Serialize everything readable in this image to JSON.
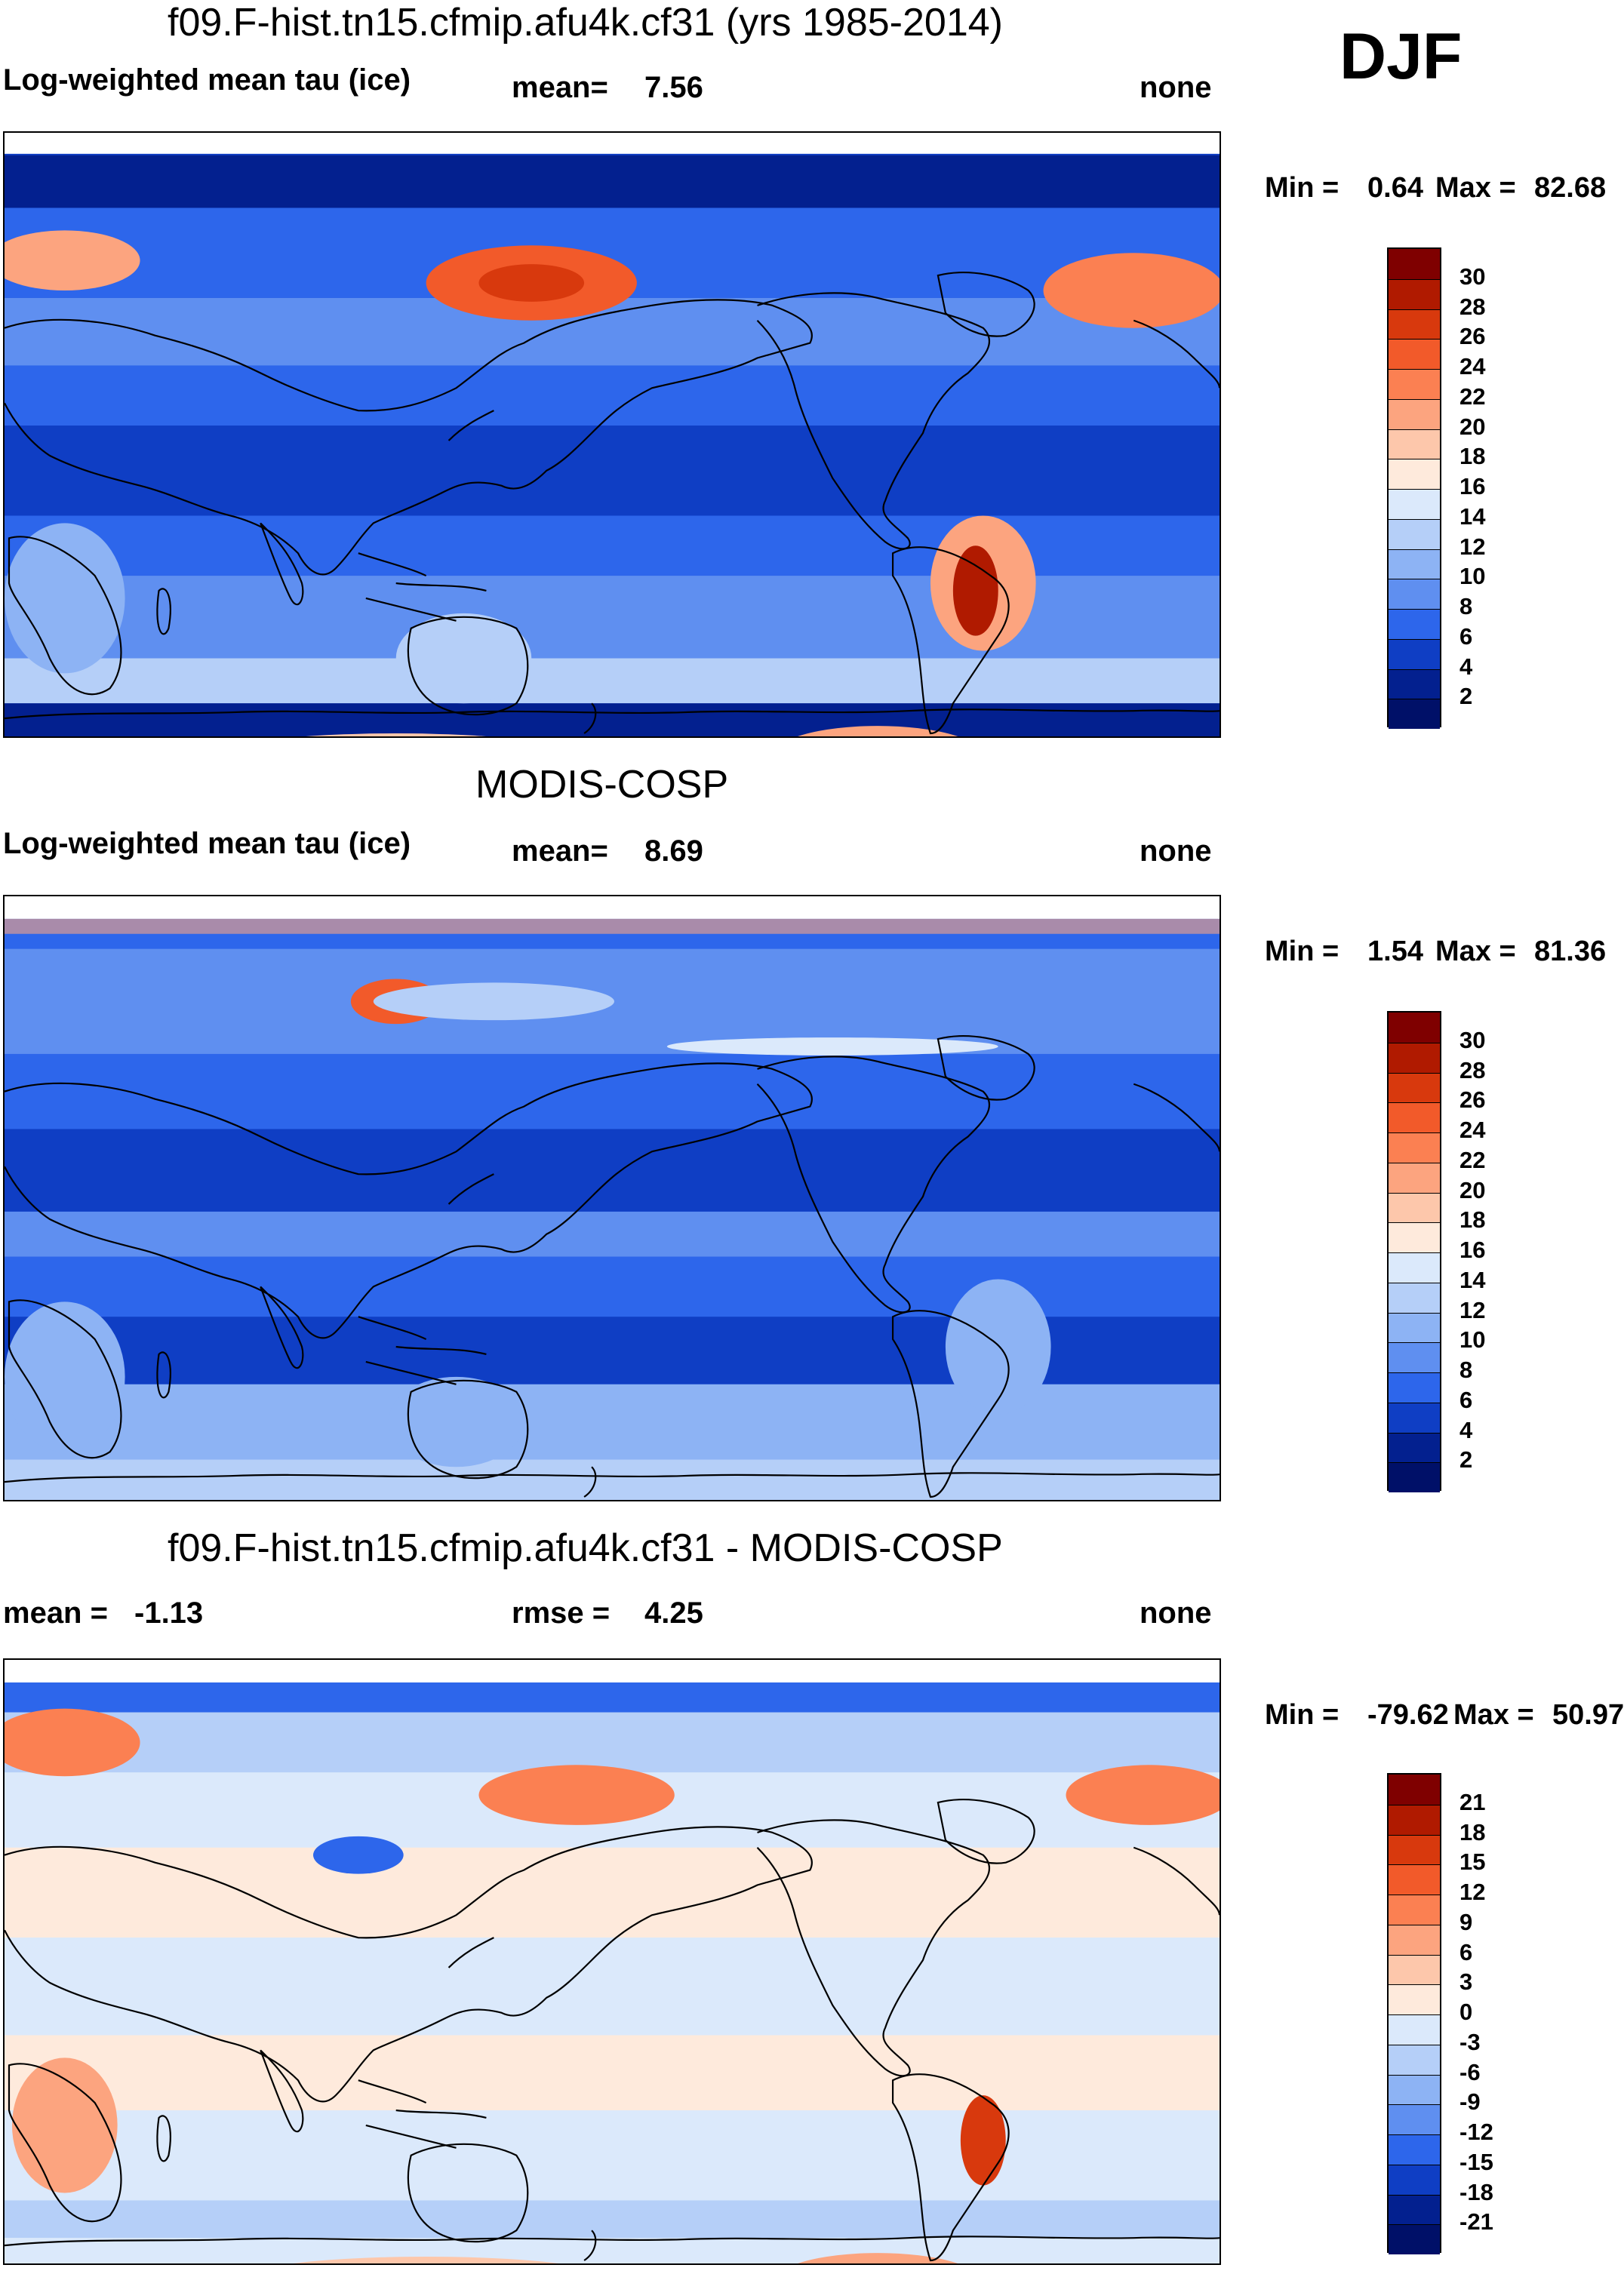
{
  "season": "DJF",
  "panels": [
    {
      "title": "f09.F-hist.tn15.cfmip.afu4k.cf31 (yrs 1985-2014)",
      "left_label": "Log-weighted mean tau (ice)",
      "center_label": "mean=",
      "center_value": "7.56",
      "right_label": "none",
      "min_label": "Min =",
      "min_value": "0.64",
      "max_label": "Max =",
      "max_value": "82.68",
      "colorbar_ticks": [
        "30",
        "28",
        "26",
        "24",
        "22",
        "20",
        "18",
        "16",
        "14",
        "12",
        "10",
        "8",
        "6",
        "4",
        "2"
      ],
      "colorbar_colors": [
        "#7f0000",
        "#b01a00",
        "#d8390d",
        "#f25a2a",
        "#fb8052",
        "#fca47f",
        "#fdc7ab",
        "#feeadc",
        "#dbe9fb",
        "#b5cff8",
        "#8db3f4",
        "#5f8ff0",
        "#2d66eb",
        "#0f3ec4",
        "#03208f",
        "#001068"
      ],
      "map": {
        "field": "model"
      }
    },
    {
      "title": "MODIS-COSP",
      "left_label": "Log-weighted mean tau (ice)",
      "center_label": "mean=",
      "center_value": "8.69",
      "right_label": "none",
      "min_label": "Min =",
      "min_value": "1.54",
      "max_label": "Max =",
      "max_value": "81.36",
      "colorbar_ticks": [
        "30",
        "28",
        "26",
        "24",
        "22",
        "20",
        "18",
        "16",
        "14",
        "12",
        "10",
        "8",
        "6",
        "4",
        "2"
      ],
      "colorbar_colors": [
        "#7f0000",
        "#b01a00",
        "#d8390d",
        "#f25a2a",
        "#fb8052",
        "#fca47f",
        "#fdc7ab",
        "#feeadc",
        "#dbe9fb",
        "#b5cff8",
        "#8db3f4",
        "#5f8ff0",
        "#2d66eb",
        "#0f3ec4",
        "#03208f",
        "#001068"
      ],
      "map": {
        "field": "obs"
      }
    },
    {
      "title": "f09.F-hist.tn15.cfmip.afu4k.cf31 - MODIS-COSP",
      "left_label": "mean =",
      "left_value": "-1.13",
      "center_label": "rmse =",
      "center_value": "4.25",
      "right_label": "none",
      "min_label": "Min =",
      "min_value": "-79.62",
      "max_label": "Max =",
      "max_value": "50.97",
      "colorbar_ticks": [
        "21",
        "18",
        "15",
        "12",
        "9",
        "6",
        "3",
        "0",
        "-3",
        "-6",
        "-9",
        "-12",
        "-15",
        "-18",
        "-21"
      ],
      "colorbar_colors": [
        "#7f0000",
        "#b01a00",
        "#d8390d",
        "#f25a2a",
        "#fb8052",
        "#fca47f",
        "#fdc7ab",
        "#feeadc",
        "#dbe9fb",
        "#b5cff8",
        "#8db3f4",
        "#5f8ff0",
        "#2d66eb",
        "#0f3ec4",
        "#03208f",
        "#001068"
      ],
      "map": {
        "field": "diff"
      }
    }
  ]
}
